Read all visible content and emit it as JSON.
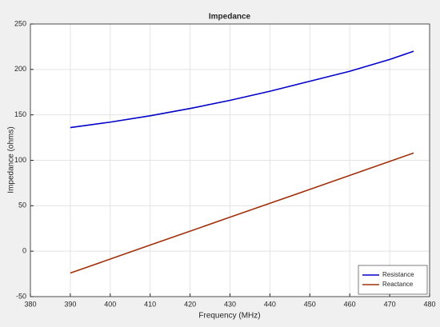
{
  "chart_data": {
    "type": "line",
    "title": "Impedance",
    "x_label": "Frequency (MHz)",
    "y_label": "Impedance (ohms)",
    "x": [
      390,
      400,
      410,
      420,
      430,
      440,
      450,
      460,
      470,
      476
    ],
    "series": [
      {
        "name": "Resistance",
        "color": "#0000c8",
        "values": [
          136,
          142,
          149,
          157,
          166,
          176,
          187,
          198,
          211,
          220
        ]
      },
      {
        "name": "Reactance",
        "color": "#a0300a",
        "values": [
          -24,
          -8.7,
          6.7,
          22,
          37.4,
          52.7,
          68,
          83.4,
          98.8,
          108
        ]
      }
    ],
    "xlim": [
      380,
      480
    ],
    "xticks": [
      380,
      390,
      400,
      410,
      420,
      430,
      440,
      450,
      460,
      470,
      480
    ],
    "ylim": [
      -50,
      250
    ],
    "yticks": [
      -50,
      0,
      50,
      100,
      150,
      200,
      250
    ],
    "grid": true,
    "legend": "lower-right"
  }
}
